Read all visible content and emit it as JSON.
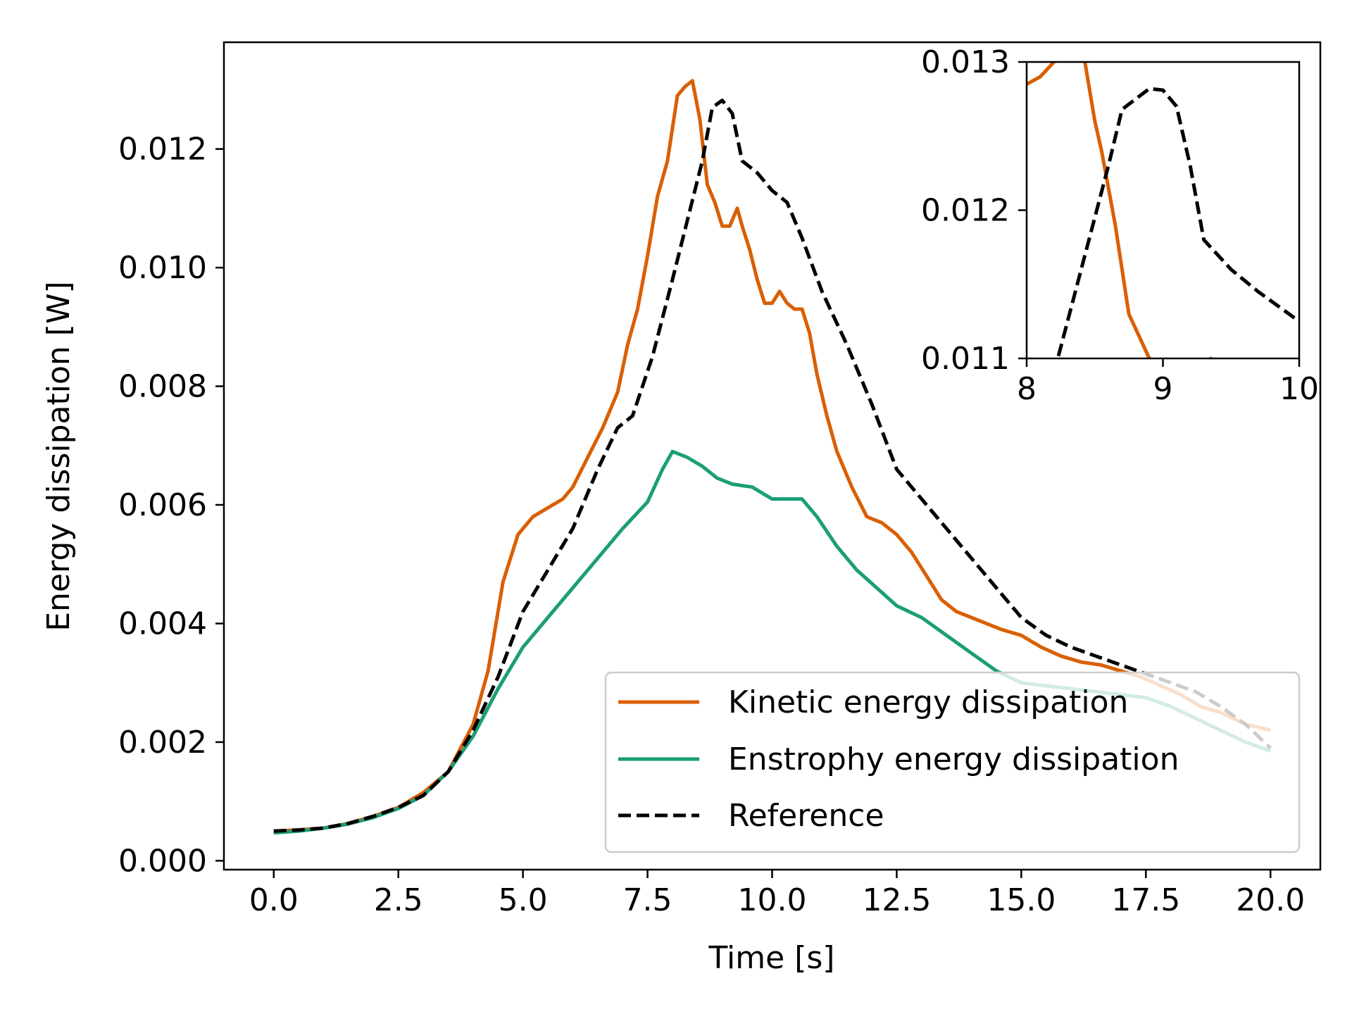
{
  "chart_data": [
    {
      "type": "line",
      "xlabel": "Time [s]",
      "ylabel": "Energy dissipation [W]",
      "xlim": [
        -1.0,
        21.0
      ],
      "ylim": [
        -0.00015,
        0.0138
      ],
      "xticks": [
        0.0,
        2.5,
        5.0,
        7.5,
        10.0,
        12.5,
        15.0,
        17.5,
        20.0
      ],
      "xtick_labels": [
        "0.0",
        "2.5",
        "5.0",
        "7.5",
        "10.0",
        "12.5",
        "15.0",
        "17.5",
        "20.0"
      ],
      "yticks": [
        0.0,
        0.002,
        0.004,
        0.006,
        0.008,
        0.01,
        0.012
      ],
      "ytick_labels": [
        "0.000",
        "0.002",
        "0.004",
        "0.006",
        "0.008",
        "0.010",
        "0.012"
      ],
      "grid": false,
      "legend_position": "lower-right",
      "series": [
        {
          "name": "Kinetic energy dissipation",
          "color": "#d95f02",
          "style": "solid",
          "x": [
            0,
            0.5,
            1,
            1.5,
            2,
            2.5,
            3,
            3.5,
            4,
            4.3,
            4.6,
            4.9,
            5.2,
            5.5,
            5.8,
            6,
            6.3,
            6.6,
            6.9,
            7.1,
            7.3,
            7.5,
            7.7,
            7.9,
            8.1,
            8.25,
            8.4,
            8.55,
            8.7,
            8.85,
            9,
            9.15,
            9.3,
            9.4,
            9.55,
            9.7,
            9.85,
            10,
            10.15,
            10.3,
            10.45,
            10.6,
            10.75,
            10.9,
            11.1,
            11.3,
            11.6,
            11.9,
            12.2,
            12.5,
            12.8,
            13.1,
            13.4,
            13.7,
            14,
            14.3,
            14.6,
            15,
            15.4,
            15.8,
            16.2,
            16.6,
            17,
            17.4,
            17.8,
            18.2,
            18.6,
            19,
            19.5,
            20
          ],
          "y": [
            0.0005,
            0.00052,
            0.00055,
            0.00063,
            0.00075,
            0.0009,
            0.00115,
            0.0015,
            0.0023,
            0.0032,
            0.0047,
            0.0055,
            0.0058,
            0.00595,
            0.0061,
            0.0063,
            0.0068,
            0.0073,
            0.0079,
            0.0087,
            0.0093,
            0.0102,
            0.0112,
            0.0118,
            0.0129,
            0.01305,
            0.01315,
            0.0125,
            0.0114,
            0.0111,
            0.0107,
            0.0107,
            0.011,
            0.0107,
            0.0103,
            0.0098,
            0.0094,
            0.0094,
            0.0096,
            0.0094,
            0.0093,
            0.0093,
            0.0089,
            0.0082,
            0.0075,
            0.0069,
            0.0063,
            0.0058,
            0.0057,
            0.0055,
            0.0052,
            0.0048,
            0.0044,
            0.0042,
            0.0041,
            0.004,
            0.0039,
            0.0038,
            0.0036,
            0.00345,
            0.00335,
            0.0033,
            0.0032,
            0.0031,
            0.00295,
            0.0028,
            0.0026,
            0.0025,
            0.0023,
            0.0022
          ]
        },
        {
          "name": "Enstrophy energy dissipation",
          "color": "#1b9e77",
          "style": "solid",
          "x": [
            0,
            0.5,
            1,
            1.5,
            2,
            2.5,
            3,
            3.5,
            4,
            4.5,
            5,
            5.5,
            6,
            6.5,
            7,
            7.5,
            7.8,
            8,
            8.3,
            8.6,
            8.9,
            9.2,
            9.6,
            10,
            10.3,
            10.6,
            10.9,
            11.3,
            11.7,
            12.1,
            12.5,
            13,
            13.5,
            14,
            14.5,
            15,
            15.5,
            16,
            16.5,
            17,
            17.5,
            18,
            18.5,
            19,
            19.5,
            20
          ],
          "y": [
            0.00047,
            0.0005,
            0.00055,
            0.00062,
            0.00073,
            0.00088,
            0.0011,
            0.0015,
            0.0021,
            0.0029,
            0.0036,
            0.0041,
            0.0046,
            0.0051,
            0.0056,
            0.00605,
            0.0066,
            0.0069,
            0.0068,
            0.00665,
            0.00645,
            0.00635,
            0.0063,
            0.0061,
            0.0061,
            0.0061,
            0.0058,
            0.0053,
            0.0049,
            0.0046,
            0.0043,
            0.0041,
            0.0038,
            0.0035,
            0.0032,
            0.003,
            0.00295,
            0.0029,
            0.00285,
            0.0028,
            0.00275,
            0.0026,
            0.0024,
            0.0022,
            0.002,
            0.00185
          ]
        },
        {
          "name": "Reference",
          "color": "#000000",
          "style": "dashed",
          "x": [
            0,
            0.5,
            1,
            1.5,
            2,
            2.5,
            3,
            3.5,
            4,
            4.5,
            5,
            5.5,
            6,
            6.5,
            6.9,
            7.2,
            7.6,
            8,
            8.3,
            8.6,
            8.8,
            9,
            9.2,
            9.4,
            9.7,
            10,
            10.3,
            10.6,
            11,
            11.5,
            12,
            12.5,
            13,
            13.5,
            14,
            14.5,
            15,
            15.5,
            16,
            16.5,
            17,
            17.5,
            18,
            18.5,
            19,
            19.5,
            20
          ],
          "y": [
            0.0005,
            0.00052,
            0.00055,
            0.00063,
            0.00075,
            0.0009,
            0.0011,
            0.0015,
            0.0022,
            0.0031,
            0.0042,
            0.0049,
            0.0056,
            0.0066,
            0.0073,
            0.0075,
            0.0085,
            0.0098,
            0.0108,
            0.0118,
            0.0127,
            0.01282,
            0.0126,
            0.0118,
            0.0116,
            0.0113,
            0.0111,
            0.0105,
            0.0096,
            0.0087,
            0.0077,
            0.0066,
            0.0061,
            0.0056,
            0.0051,
            0.0046,
            0.0041,
            0.0038,
            0.0036,
            0.00345,
            0.0033,
            0.00315,
            0.003,
            0.00285,
            0.0026,
            0.0023,
            0.0019
          ]
        }
      ]
    },
    {
      "type": "line",
      "xlabel": "",
      "ylabel": "",
      "xlim": [
        8,
        10
      ],
      "ylim": [
        0.011,
        0.013
      ],
      "xticks": [
        8,
        9,
        10
      ],
      "xtick_labels": [
        "8",
        "9",
        "10"
      ],
      "yticks": [
        0.011,
        0.012,
        0.013
      ],
      "ytick_labels": [
        "0.011",
        "0.012",
        "0.013"
      ],
      "grid": false,
      "legend_position": "none",
      "series": [
        {
          "name": "Kinetic energy dissipation",
          "color": "#d95f02",
          "style": "solid",
          "x": [
            7.8,
            8,
            8.1,
            8.25,
            8.4,
            8.5,
            8.55,
            8.65,
            8.75,
            8.85,
            8.95,
            9.1,
            9.25,
            9.35,
            9.5
          ],
          "y": [
            0.0125,
            0.01285,
            0.0129,
            0.01305,
            0.01315,
            0.0126,
            0.0124,
            0.0119,
            0.0113,
            0.0111,
            0.0109,
            0.0107,
            0.0107,
            0.011,
            0.0107
          ]
        },
        {
          "name": "Reference",
          "color": "#000000",
          "style": "dashed",
          "x": [
            8,
            8.2,
            8.4,
            8.6,
            8.7,
            8.8,
            8.9,
            9,
            9.1,
            9.2,
            9.3,
            9.5,
            9.7,
            9.85,
            10
          ],
          "y": [
            0.0098,
            0.0109,
            0.0116,
            0.0123,
            0.01268,
            0.01275,
            0.01282,
            0.01281,
            0.0127,
            0.0123,
            0.0118,
            0.0116,
            0.01145,
            0.01135,
            0.01125
          ]
        }
      ]
    }
  ]
}
